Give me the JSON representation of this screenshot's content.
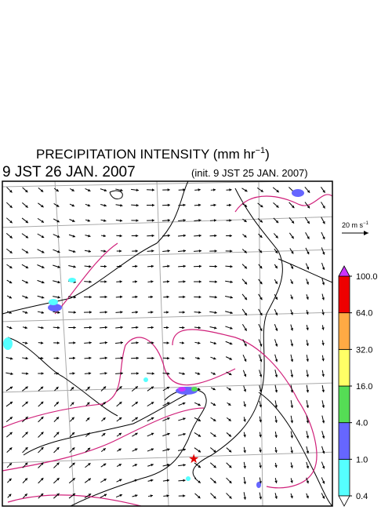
{
  "title": {
    "text": "PRECIPITATION INTENSITY (mm hr",
    "sup": "−1",
    "close": ")"
  },
  "valid_time": "9 JST 26 JAN. 2007",
  "init_time": "(init. 9 JST 25 JAN. 2007)",
  "wind_scale": {
    "text": "20 m s",
    "sup": "−1"
  },
  "colorbar": {
    "levels": [
      {
        "value": 0.4,
        "label": "0.4"
      },
      {
        "value": 1,
        "label": "1.0"
      },
      {
        "value": 4,
        "label": "4.0"
      },
      {
        "value": 16,
        "label": "16.0"
      },
      {
        "value": 32,
        "label": "32.0"
      },
      {
        "value": 64,
        "label": "64.0"
      },
      {
        "value": 100,
        "label": "100.0"
      }
    ],
    "colors": [
      "#55ffff",
      "#6666ff",
      "#55dd55",
      "#ffff66",
      "#ffaa44",
      "#ee0000"
    ],
    "over_color": "#cc33ff",
    "under_color": "#ffffff"
  }
}
